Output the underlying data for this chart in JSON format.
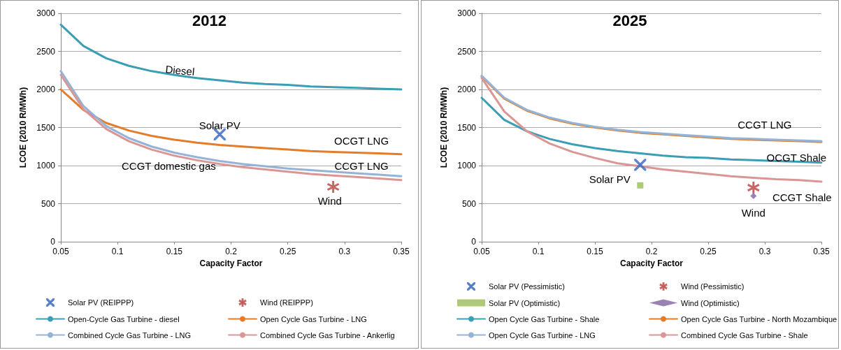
{
  "chart_data": [
    {
      "type": "line",
      "title": "2012",
      "xlabel": "Capacity Factor",
      "ylabel": "LCOE (2010 R/MWh)",
      "xlim": [
        0.05,
        0.35
      ],
      "xticks": [
        0.05,
        0.1,
        0.15,
        0.2,
        0.25,
        0.3,
        0.35
      ],
      "ylim": [
        0,
        3000
      ],
      "yticks": [
        0,
        500,
        1000,
        1500,
        2000,
        2500,
        3000
      ],
      "grid": "y",
      "legend": "bottom",
      "line_style": "solid",
      "x": [
        0.05,
        0.07,
        0.09,
        0.11,
        0.13,
        0.15,
        0.17,
        0.19,
        0.21,
        0.23,
        0.25,
        0.27,
        0.29,
        0.31,
        0.33,
        0.35
      ],
      "series": [
        {
          "name": "Solar PV (REIPPP)",
          "type": "scatter",
          "marker": "cross",
          "color": "#4472c4",
          "values": [
            null,
            null,
            null,
            null,
            null,
            null,
            null,
            1410,
            null,
            null,
            null,
            null,
            null,
            null,
            null,
            null
          ]
        },
        {
          "name": "Wind (REIPPP)",
          "type": "scatter",
          "marker": "star",
          "color": "#c0504d",
          "values": [
            null,
            null,
            null,
            null,
            null,
            null,
            null,
            null,
            null,
            null,
            null,
            null,
            720,
            null,
            null,
            null
          ]
        },
        {
          "name": "Open-Cycle Gas Turbine - diesel",
          "marker": "none",
          "color": "#3a9fb4",
          "values": [
            2850,
            2570,
            2410,
            2310,
            2240,
            2190,
            2150,
            2120,
            2090,
            2070,
            2060,
            2040,
            2030,
            2020,
            2010,
            2000
          ]
        },
        {
          "name": "Open Cycle Gas Turbine - LNG",
          "marker": "none",
          "color": "#e37d2a",
          "values": [
            2000,
            1730,
            1560,
            1460,
            1390,
            1340,
            1300,
            1270,
            1250,
            1230,
            1210,
            1190,
            1180,
            1170,
            1160,
            1150
          ]
        },
        {
          "name": "Combined Cycle Gas Turbine - LNG",
          "marker": "none",
          "color": "#95b3d7",
          "values": [
            2240,
            1780,
            1520,
            1360,
            1250,
            1170,
            1110,
            1060,
            1020,
            990,
            960,
            940,
            920,
            900,
            880,
            860
          ]
        },
        {
          "name": "Combined Cycle Gas Turbine - Ankerlig",
          "marker": "none",
          "color": "#d99694",
          "values": [
            2190,
            1740,
            1480,
            1320,
            1210,
            1130,
            1070,
            1020,
            980,
            950,
            920,
            890,
            870,
            850,
            830,
            810
          ]
        }
      ],
      "annotations": [
        "Diesel",
        {
          "text": "Solar PV",
          "x": 0.19,
          "y": 1530
        },
        "OCGT LNG",
        "CCGT LNG",
        "CCGT domestic gas",
        "Wind"
      ]
    },
    {
      "type": "line",
      "title": "2025",
      "xlabel": "Capacity Factor",
      "ylabel": "LCOE (2010 R/MWh)",
      "xlim": [
        0.05,
        0.35
      ],
      "xticks": [
        0.05,
        0.1,
        0.15,
        0.2,
        0.25,
        0.3,
        0.35
      ],
      "ylim": [
        0,
        3000
      ],
      "yticks": [
        0,
        500,
        1000,
        1500,
        2000,
        2500,
        3000
      ],
      "grid": "y",
      "legend": "bottom",
      "line_style": "solid",
      "x": [
        0.05,
        0.07,
        0.09,
        0.11,
        0.13,
        0.15,
        0.17,
        0.19,
        0.21,
        0.23,
        0.25,
        0.27,
        0.29,
        0.31,
        0.33,
        0.35
      ],
      "series": [
        {
          "name": "Solar PV (Pessimistic)",
          "type": "scatter",
          "marker": "cross",
          "color": "#4472c4",
          "values": [
            null,
            null,
            null,
            null,
            null,
            null,
            null,
            1010,
            null,
            null,
            null,
            null,
            null,
            null,
            null,
            null
          ]
        },
        {
          "name": "Wind (Pessimistic)",
          "type": "scatter",
          "marker": "star",
          "color": "#c0504d",
          "values": [
            null,
            null,
            null,
            null,
            null,
            null,
            null,
            null,
            null,
            null,
            null,
            null,
            710,
            null,
            null,
            null
          ]
        },
        {
          "name": "Solar PV (Optimistic)",
          "type": "scatter",
          "marker": "square",
          "color": "#9bbb59",
          "values": [
            null,
            null,
            null,
            null,
            null,
            null,
            null,
            740,
            null,
            null,
            null,
            null,
            null,
            null,
            null,
            null
          ]
        },
        {
          "name": "Wind (Optimistic)",
          "type": "scatter",
          "marker": "diamond",
          "color": "#8064a2",
          "values": [
            null,
            null,
            null,
            null,
            null,
            null,
            null,
            null,
            null,
            null,
            null,
            null,
            600,
            null,
            null,
            null
          ]
        },
        {
          "name": "Open Cycle Gas Turbine - Shale",
          "marker": "none",
          "color": "#3a9fb4",
          "values": [
            1890,
            1600,
            1450,
            1350,
            1280,
            1230,
            1190,
            1160,
            1130,
            1110,
            1100,
            1080,
            1070,
            1060,
            1050,
            1040
          ]
        },
        {
          "name": "Open Cycle Gas Turbine - North Mozambique",
          "marker": "none",
          "color": "#e37d2a",
          "values": [
            2170,
            1880,
            1720,
            1620,
            1550,
            1500,
            1460,
            1430,
            1410,
            1390,
            1370,
            1350,
            1340,
            1330,
            1320,
            1310
          ]
        },
        {
          "name": "Open Cycle Gas Turbine - LNG",
          "marker": "none",
          "color": "#95b3d7",
          "values": [
            2180,
            1890,
            1730,
            1630,
            1560,
            1510,
            1470,
            1440,
            1420,
            1400,
            1380,
            1360,
            1350,
            1340,
            1330,
            1320
          ]
        },
        {
          "name": "Combined Cycle Gas Turbine - Shale",
          "marker": "none",
          "color": "#d99694",
          "values": [
            2150,
            1710,
            1450,
            1290,
            1180,
            1100,
            1030,
            990,
            950,
            920,
            890,
            860,
            840,
            820,
            810,
            790
          ]
        }
      ],
      "annotations": [
        "CCGT LNG",
        {
          "text": "OCGT Shale",
          "x": 0.328,
          "y": 1110
        },
        "Solar PV",
        "CCGT Shale",
        "Wind"
      ]
    }
  ]
}
